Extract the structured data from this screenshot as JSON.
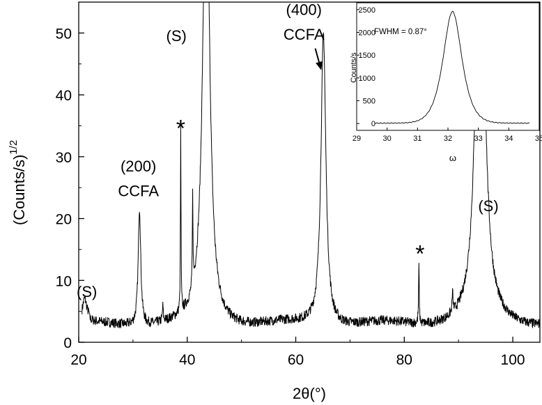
{
  "chart_data": [
    {
      "type": "line",
      "xlabel": "2θ(°)",
      "ylabel": "(Counts/s)",
      "ylabel_exponent": "1/2",
      "xlim": [
        20,
        105
      ],
      "ylim": [
        0,
        55
      ],
      "x_ticks": [
        "20",
        "40",
        "60",
        "80",
        "100"
      ],
      "y_ticks": [
        "0",
        "10",
        "20",
        "30",
        "40",
        "50"
      ],
      "background_level": 2.8,
      "peaks": [
        {
          "x": 21.1,
          "y": 5.9,
          "w": 0.45
        },
        {
          "x": 31.2,
          "y": 21.8,
          "w": 0.28
        },
        {
          "x": 35.5,
          "y": 5.2,
          "w": 0.1
        },
        {
          "x": 38.8,
          "y": 32.4,
          "w": 0.06
        },
        {
          "x": 41.0,
          "y": 17.5,
          "w": 0.07
        },
        {
          "x": 43.5,
          "y": 80.0,
          "w": 0.75
        },
        {
          "x": 65.1,
          "y": 50.0,
          "w": 0.55
        },
        {
          "x": 82.7,
          "y": 12.3,
          "w": 0.07
        },
        {
          "x": 88.9,
          "y": 6.0,
          "w": 0.1
        },
        {
          "x": 94.0,
          "y": 80.0,
          "w": 0.9
        }
      ],
      "annotations": [
        {
          "text": "(S)",
          "x": 21.5,
          "y": 7.3
        },
        {
          "text": "(200)",
          "x": 31.0,
          "y": 27.6
        },
        {
          "text": "CCFA",
          "x": 31.0,
          "y": 23.6
        },
        {
          "text": "*",
          "x": 38.8,
          "y": 33.3
        },
        {
          "text": "(S)",
          "x": 38.0,
          "y": 48.7
        },
        {
          "text": "(400)",
          "x": 61.5,
          "y": 52.9
        },
        {
          "text": "CCFA",
          "x": 61.5,
          "y": 48.9
        },
        {
          "text": "*",
          "x": 82.9,
          "y": 13.0
        },
        {
          "text": "(S)",
          "x": 95.5,
          "y": 21.2
        }
      ],
      "arrow": {
        "from": [
          63.6,
          47.5
        ],
        "to": [
          64.7,
          44.0
        ]
      }
    },
    {
      "type": "line",
      "inset": true,
      "xlabel": "ω",
      "ylabel": "Counts/s",
      "xlim": [
        29,
        35
      ],
      "ylim": [
        -150,
        2650
      ],
      "x_ticks": [
        "29",
        "30",
        "31",
        "32",
        "33",
        "34",
        "35"
      ],
      "y_ticks": [
        "0",
        "500",
        "1000",
        "1500",
        "2000",
        "2500"
      ],
      "x_start": 29.6,
      "x_end": 34.7,
      "peak_center": 32.15,
      "peak_height": 2450,
      "annotation": "FWHM = 0.87°"
    }
  ]
}
